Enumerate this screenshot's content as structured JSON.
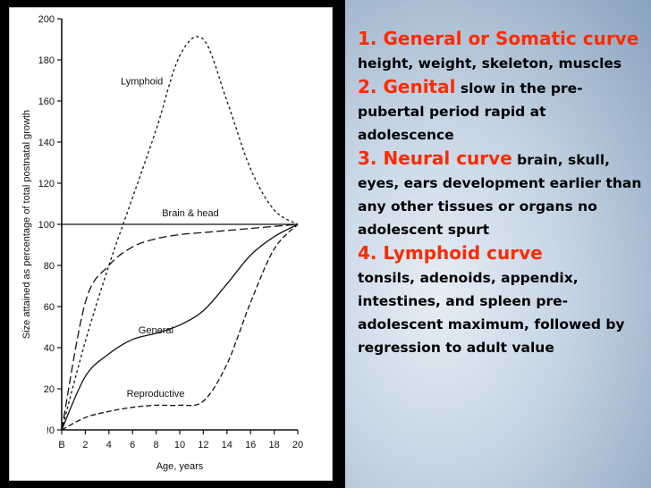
{
  "chart_data": {
    "type": "line",
    "xlabel": "Age, years",
    "ylabel": "Size attained as percentage of total postnatal growth",
    "xlim": [
      0,
      20
    ],
    "ylim": [
      0,
      200
    ],
    "x_ticks": [
      "B",
      "2",
      "4",
      "6",
      "8",
      "10",
      "12",
      "14",
      "16",
      "18",
      "20"
    ],
    "y_ticks": [
      "!0",
      "20",
      "40",
      "60",
      "80",
      "100",
      "120",
      "140",
      "160",
      "180",
      "200"
    ],
    "x": [
      0,
      2,
      4,
      6,
      8,
      10,
      12,
      14,
      16,
      18,
      20
    ],
    "series": [
      {
        "name": "Lymphoid",
        "values": [
          0,
          43,
          80,
          113,
          146,
          182,
          190,
          160,
          127,
          107,
          100
        ],
        "dash": "3,3"
      },
      {
        "name": "Brain & head",
        "values": [
          0,
          62,
          80,
          89,
          93,
          95,
          96,
          97,
          98,
          99,
          100
        ],
        "dash": "9,4"
      },
      {
        "name": "General",
        "values": [
          0,
          26,
          37,
          44,
          47,
          51,
          58,
          71,
          85,
          94,
          100
        ],
        "dash": ""
      },
      {
        "name": "Reproductive",
        "values": [
          0,
          6,
          9,
          11,
          12,
          12,
          14,
          32,
          62,
          88,
          100
        ],
        "dash": "6,3"
      }
    ]
  },
  "notes": {
    "item1": {
      "heading": "1. General or Somatic curve",
      "text": " height, weight, skeleton, muscles"
    },
    "item2": {
      "heading": " 2. Genital",
      "text": " slow in the pre-pubertal period rapid at adolescence"
    },
    "item3": {
      "heading": "3.  Neural curve",
      "text": " brain, skull, eyes, ears development earlier than any other tissues or organs no adolescent spurt"
    },
    "item4": {
      "heading": "4.  Lymphoid curve",
      "text": "tonsils, adenoids, appendix, intestines, and spleen pre-adolescent maximum, followed by regression to adult value"
    }
  }
}
